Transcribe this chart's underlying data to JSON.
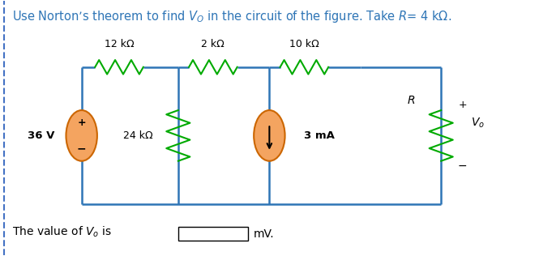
{
  "title": "Use Norton’s theorem to find $V_O$ in the circuit of the figure. Take $R$= 4 kΩ.",
  "title_color": "#2E75B6",
  "bg_color": "#ffffff",
  "wire_color": "#2E75B6",
  "resistor_color": "#00AA00",
  "source_fill": "#F4A460",
  "source_border": "#CC6600",
  "bottom_text": "The value of $V_o$ is",
  "unit_text": "mV.",
  "left_border_color": "#4472C4",
  "labels": {
    "12k": "12 kΩ",
    "2k": "2 kΩ",
    "10k": "10 kΩ",
    "24k": "24 kΩ",
    "R": "R",
    "36V": "36 V",
    "3mA": "3 mA"
  }
}
